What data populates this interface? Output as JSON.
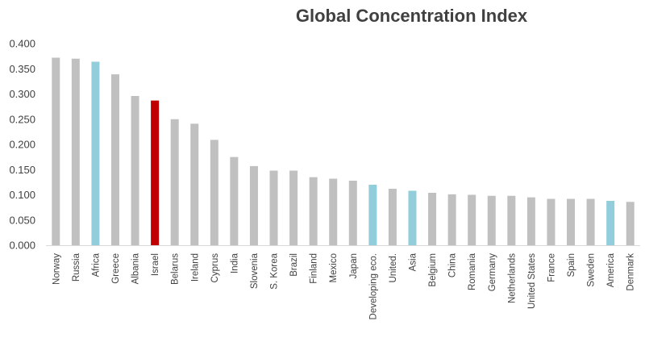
{
  "chart_data": {
    "type": "bar",
    "title": "Global Concentration Index",
    "xlabel": "",
    "ylabel": "",
    "ylim": [
      0,
      0.4
    ],
    "y_ticks": [
      "0.000",
      "0.050",
      "0.100",
      "0.150",
      "0.200",
      "0.250",
      "0.300",
      "0.350",
      "0.400"
    ],
    "grid": false,
    "legend": "none",
    "categories": [
      "Norway",
      "Russia",
      "Africa",
      "Greece",
      "Albania",
      "Israel",
      "Belarus",
      "Ireland",
      "Cyprus",
      "India",
      "Slovenia",
      "S. Korea",
      "Brazil",
      "Finland",
      "Mexico",
      "Japan",
      "Developing eco.",
      "United.",
      "Asia",
      "Belgium",
      "China",
      "Romania",
      "Germany",
      "Netherlands",
      "United States",
      "France",
      "Spain",
      "Sweden",
      "America",
      "Denmark"
    ],
    "values": [
      0.372,
      0.37,
      0.364,
      0.339,
      0.296,
      0.287,
      0.25,
      0.241,
      0.209,
      0.175,
      0.157,
      0.148,
      0.148,
      0.135,
      0.132,
      0.128,
      0.12,
      0.112,
      0.108,
      0.104,
      0.101,
      0.1,
      0.098,
      0.098,
      0.095,
      0.092,
      0.092,
      0.092,
      0.088,
      0.086
    ],
    "bar_colors": [
      "#c0c0c0",
      "#c0c0c0",
      "#92cddc",
      "#c0c0c0",
      "#c0c0c0",
      "#c00000",
      "#c0c0c0",
      "#c0c0c0",
      "#c0c0c0",
      "#c0c0c0",
      "#c0c0c0",
      "#c0c0c0",
      "#c0c0c0",
      "#c0c0c0",
      "#c0c0c0",
      "#c0c0c0",
      "#92cddc",
      "#c0c0c0",
      "#92cddc",
      "#c0c0c0",
      "#c0c0c0",
      "#c0c0c0",
      "#c0c0c0",
      "#c0c0c0",
      "#c0c0c0",
      "#c0c0c0",
      "#c0c0c0",
      "#c0c0c0",
      "#92cddc",
      "#c0c0c0"
    ],
    "colors": {
      "default_bar": "#c0c0c0",
      "region_bar": "#92cddc",
      "highlight_bar": "#c00000",
      "axis": "#d9d9d9",
      "text": "#404040"
    }
  }
}
